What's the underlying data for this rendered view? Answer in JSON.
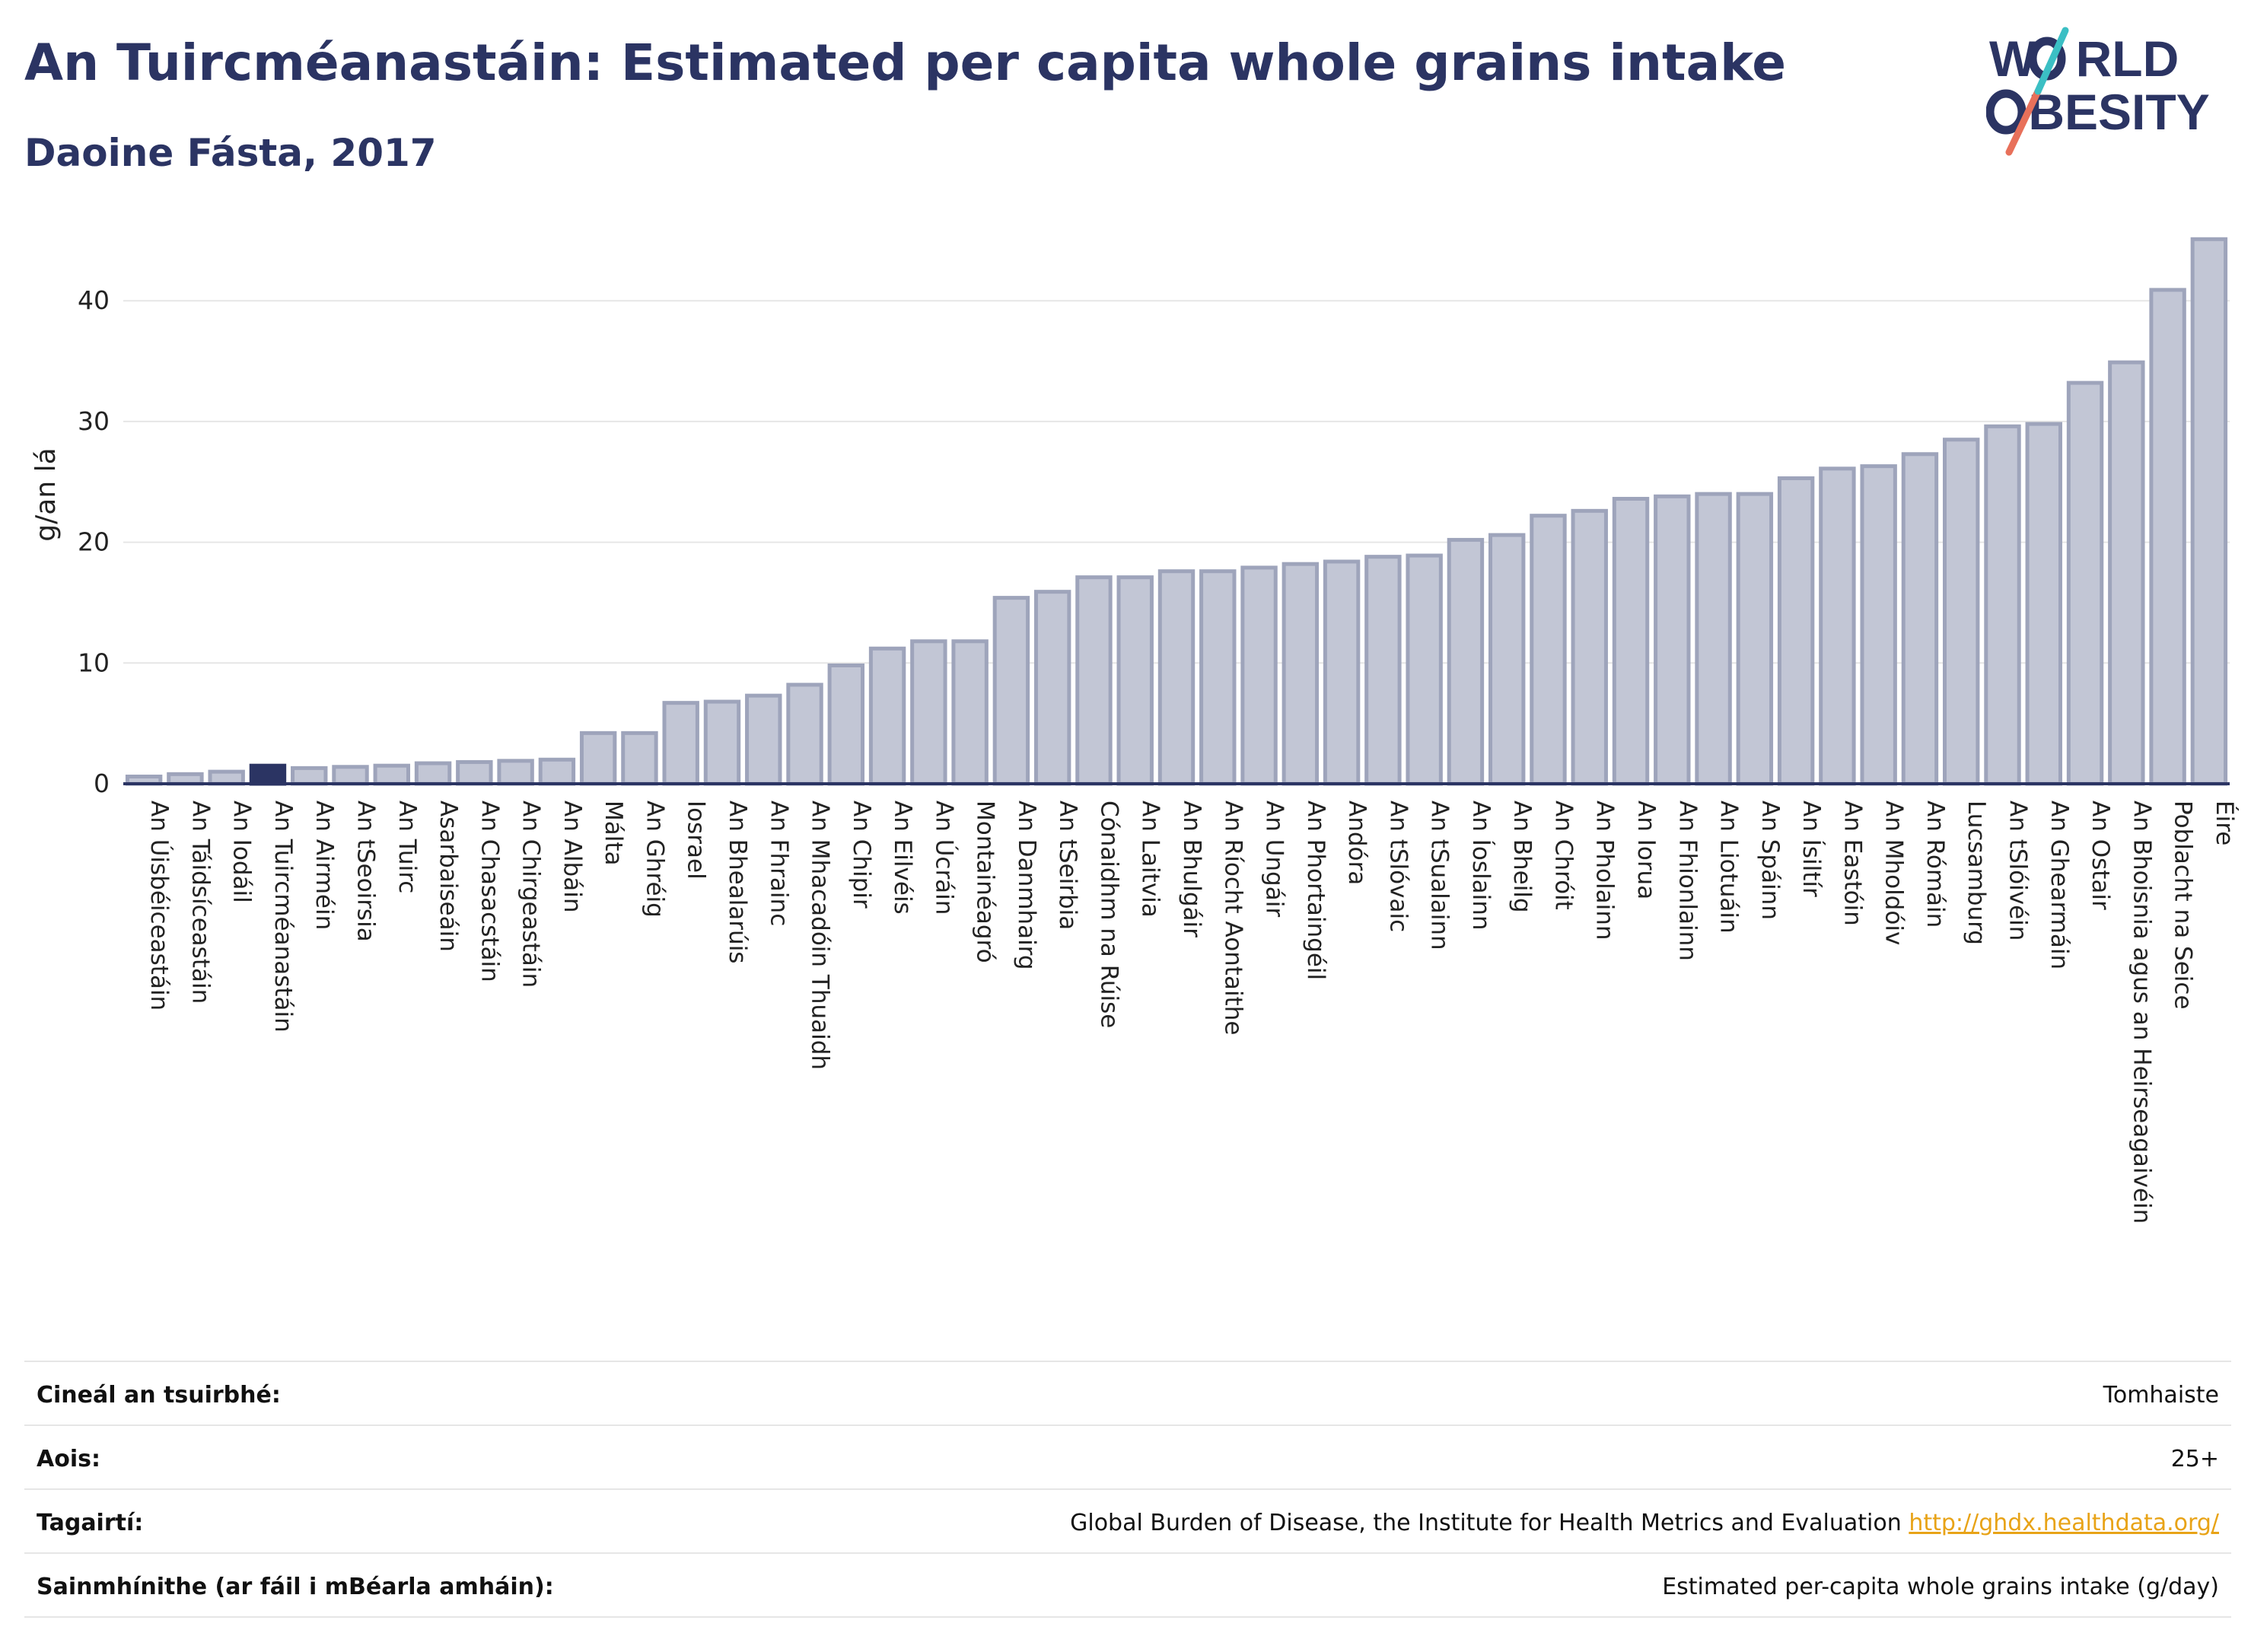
{
  "header": {
    "title": "An Tuircméanastáin: Estimated per capita whole grains intake",
    "subtitle": "Daoine Fásta, 2017"
  },
  "logo": {
    "line1_pre": "W",
    "line1_post": "RLD",
    "line2_post": "BESITY",
    "colors": {
      "navy": "#2b3463",
      "teal": "#3bbfc4",
      "coral": "#e8705a"
    }
  },
  "chart_data": {
    "type": "bar",
    "ylabel": "g/an lá",
    "ylim": [
      0,
      46
    ],
    "yticks": [
      0,
      10,
      20,
      30,
      40
    ],
    "grid": true,
    "highlight": "An Tuircméanastáin",
    "colors": {
      "bar": "#c2c6d5",
      "bar_edge": "#9ea4bb",
      "highlight": "#2b3463",
      "axis": "#2b3463",
      "grid": "#e6e6e6"
    },
    "categories": [
      "An Úisbéiceastáin",
      "An Táidsíceastáin",
      "An Iodáil",
      "An Tuircméanastáin",
      "An Airméin",
      "An tSeoirsia",
      "An Tuirc",
      "Asarbaiseáin",
      "An Chasacstáin",
      "An Chirgeastáin",
      "An Albáin",
      "Málta",
      "An Ghréig",
      "Iosrael",
      "An Bhealarúis",
      "An Fhrainc",
      "An Mhacadóin Thuaidh",
      "An Chipir",
      "An Eilvéis",
      "An Úcráin",
      "Montainéagró",
      "An Danmhairg",
      "An tSeirbia",
      "Cónaidhm na Rúise",
      "An Laitvia",
      "An Bhulgáir",
      "An Ríocht Aontaithe",
      "An Ungáir",
      "An Phortaingéil",
      "Andóra",
      "An tSlóvaic",
      "An tSualainn",
      "An Íoslainn",
      "An Bheilg",
      "An Chróit",
      "An Pholainn",
      "An Iorua",
      "An Fhionlainn",
      "An Liotuáin",
      "An Spáinn",
      "An Ísiltír",
      "An Eastóin",
      "An Mholdóiv",
      "An Rómáin",
      "Lucsamburg",
      "An tSlóivéin",
      "An Ghearmáin",
      "An Ostair",
      "An Bhoisnia agus an Heirseagaivéin",
      "Poblacht na Seice",
      "Éire"
    ],
    "values": [
      0.6,
      0.8,
      1.0,
      1.5,
      1.3,
      1.4,
      1.5,
      1.7,
      1.8,
      1.9,
      2.0,
      4.2,
      4.2,
      6.7,
      6.8,
      7.3,
      8.2,
      9.8,
      11.2,
      11.8,
      11.8,
      15.4,
      15.9,
      17.1,
      17.1,
      17.6,
      17.6,
      17.9,
      18.2,
      18.4,
      18.8,
      18.9,
      20.2,
      20.6,
      22.2,
      22.6,
      23.6,
      23.8,
      24.0,
      24.0,
      25.3,
      26.1,
      26.3,
      27.3,
      28.5,
      29.6,
      29.8,
      33.2,
      34.9,
      40.9,
      45.1
    ]
  },
  "info": {
    "rows": [
      {
        "label": "Cineál an tsuirbhé:",
        "value": "Tomhaiste"
      },
      {
        "label": "Aois:",
        "value": "25+"
      },
      {
        "label": "Tagairtí:",
        "value": "Global Burden of Disease, the Institute for Health Metrics and Evaluation",
        "link": "http://ghdx.healthdata.org/"
      },
      {
        "label": "Sainmhínithe (ar fáil i mBéarla amháin):",
        "value": "Estimated per-capita whole grains intake (g/day)"
      }
    ]
  }
}
